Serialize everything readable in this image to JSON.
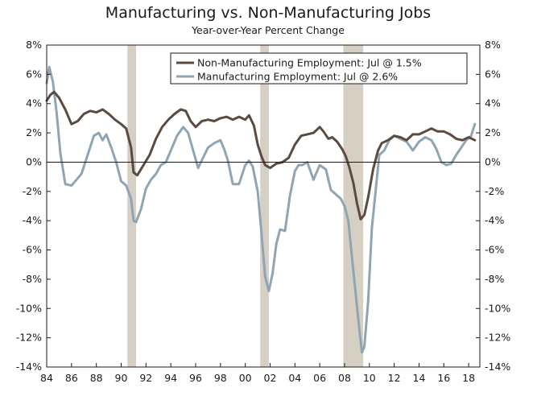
{
  "chart_data": {
    "type": "line",
    "title": "Manufacturing vs. Non-Manufacturing Jobs",
    "subtitle": "Year-over-Year Percent Change",
    "xlabel": "",
    "ylabel": "",
    "xlim": [
      1984,
      2018.9
    ],
    "ylim": [
      -14,
      8
    ],
    "y_ticks": [
      8,
      6,
      4,
      2,
      0,
      -2,
      -4,
      -6,
      -8,
      -10,
      -12,
      -14
    ],
    "y_tick_labels": [
      "8%",
      "6%",
      "4%",
      "2%",
      "0%",
      "-2%",
      "-4%",
      "-6%",
      "-8%",
      "-10%",
      "-12%",
      "-14%"
    ],
    "x_ticks": [
      1984,
      1986,
      1988,
      1990,
      1992,
      1994,
      1996,
      1998,
      2000,
      2002,
      2004,
      2006,
      2008,
      2010,
      2012,
      2014,
      2016,
      2018
    ],
    "x_tick_labels": [
      "84",
      "86",
      "88",
      "90",
      "92",
      "94",
      "96",
      "98",
      "00",
      "02",
      "04",
      "06",
      "08",
      "10",
      "12",
      "14",
      "16",
      "18"
    ],
    "recessions": [
      [
        1990.5,
        1991.2
      ],
      [
        2001.2,
        2001.9
      ],
      [
        2007.9,
        2009.5
      ]
    ],
    "colors": {
      "non_manufacturing": "#5b4a3f",
      "manufacturing": "#8fa5b4",
      "recession": "#d6d0c4",
      "axis": "#1a1a1a"
    },
    "legend": {
      "placement": "top-center"
    },
    "series": [
      {
        "name": "Non-Manufacturing Employment: Jul @ 1.5%",
        "color": "#5b4a3f",
        "x": [
          1984.0,
          1984.3,
          1984.6,
          1985.0,
          1985.5,
          1986.0,
          1986.5,
          1987.0,
          1987.5,
          1988.0,
          1988.5,
          1989.0,
          1989.5,
          1990.0,
          1990.4,
          1990.8,
          1991.0,
          1991.3,
          1991.8,
          1992.3,
          1992.8,
          1993.3,
          1993.8,
          1994.3,
          1994.8,
          1995.2,
          1995.6,
          1996.0,
          1996.5,
          1997.0,
          1997.5,
          1998.0,
          1998.5,
          1999.0,
          1999.5,
          2000.0,
          2000.3,
          2000.7,
          2001.0,
          2001.3,
          2001.6,
          2002.0,
          2002.5,
          2003.0,
          2003.5,
          2004.0,
          2004.5,
          2005.0,
          2005.5,
          2006.0,
          2006.3,
          2006.7,
          2007.0,
          2007.4,
          2007.8,
          2008.1,
          2008.4,
          2008.7,
          2009.0,
          2009.3,
          2009.6,
          2009.9,
          2010.3,
          2010.7,
          2011.0,
          2011.5,
          2012.0,
          2012.5,
          2013.0,
          2013.5,
          2014.0,
          2014.5,
          2015.0,
          2015.5,
          2016.0,
          2016.5,
          2017.0,
          2017.5,
          2018.0,
          2018.5
        ],
        "values": [
          4.2,
          4.6,
          4.8,
          4.4,
          3.6,
          2.6,
          2.8,
          3.3,
          3.5,
          3.4,
          3.6,
          3.3,
          2.9,
          2.6,
          2.3,
          1.0,
          -0.7,
          -0.9,
          -0.2,
          0.5,
          1.6,
          2.4,
          2.9,
          3.3,
          3.6,
          3.5,
          2.8,
          2.4,
          2.8,
          2.9,
          2.8,
          3.0,
          3.1,
          2.9,
          3.1,
          2.9,
          3.2,
          2.5,
          1.2,
          0.4,
          -0.2,
          -0.4,
          -0.1,
          0.0,
          0.3,
          1.2,
          1.8,
          1.9,
          2.0,
          2.4,
          2.1,
          1.6,
          1.7,
          1.4,
          0.9,
          0.4,
          -0.4,
          -1.4,
          -2.8,
          -3.9,
          -3.6,
          -2.4,
          -0.5,
          0.8,
          1.3,
          1.5,
          1.8,
          1.7,
          1.5,
          1.9,
          1.9,
          2.1,
          2.3,
          2.1,
          2.1,
          1.9,
          1.6,
          1.5,
          1.7,
          1.5
        ]
      },
      {
        "name": "Manufacturing Employment: Jul @ 2.6%",
        "color": "#8fa5b4",
        "x": [
          1984.0,
          1984.2,
          1984.5,
          1984.8,
          1985.1,
          1985.5,
          1986.0,
          1986.4,
          1986.8,
          1987.3,
          1987.8,
          1988.2,
          1988.5,
          1988.8,
          1989.2,
          1989.6,
          1990.0,
          1990.4,
          1990.8,
          1991.0,
          1991.2,
          1991.6,
          1992.0,
          1992.4,
          1992.8,
          1993.2,
          1993.6,
          1994.0,
          1994.5,
          1995.0,
          1995.4,
          1995.8,
          1996.2,
          1996.6,
          1997.0,
          1997.5,
          1998.0,
          1998.3,
          1998.6,
          1999.0,
          1999.5,
          2000.0,
          2000.3,
          2000.6,
          2001.0,
          2001.3,
          2001.6,
          2001.9,
          2002.2,
          2002.5,
          2002.8,
          2003.2,
          2003.6,
          2004.0,
          2004.3,
          2004.6,
          2005.0,
          2005.5,
          2006.0,
          2006.5,
          2006.9,
          2007.3,
          2007.7,
          2008.0,
          2008.3,
          2008.6,
          2008.9,
          2009.2,
          2009.4,
          2009.6,
          2009.9,
          2010.2,
          2010.5,
          2010.8,
          2011.2,
          2011.6,
          2012.0,
          2012.5,
          2013.0,
          2013.5,
          2014.0,
          2014.5,
          2015.0,
          2015.4,
          2015.8,
          2016.2,
          2016.6,
          2017.0,
          2017.4,
          2017.8,
          2018.2,
          2018.5
        ],
        "values": [
          5.4,
          6.5,
          5.5,
          3.4,
          0.6,
          -1.5,
          -1.6,
          -1.2,
          -0.8,
          0.5,
          1.8,
          2.0,
          1.5,
          1.9,
          1.0,
          0.0,
          -1.3,
          -1.6,
          -2.5,
          -4.0,
          -4.1,
          -3.2,
          -1.8,
          -1.2,
          -0.8,
          -0.2,
          0.0,
          0.8,
          1.8,
          2.4,
          2.0,
          0.8,
          -0.4,
          0.3,
          1.0,
          1.3,
          1.5,
          0.9,
          0.1,
          -1.5,
          -1.5,
          -0.2,
          0.1,
          -0.3,
          -2.0,
          -4.8,
          -7.8,
          -8.8,
          -7.6,
          -5.6,
          -4.6,
          -4.7,
          -2.3,
          -0.6,
          -0.2,
          -0.2,
          0.0,
          -1.2,
          -0.2,
          -0.5,
          -1.9,
          -2.2,
          -2.5,
          -3.0,
          -4.0,
          -6.5,
          -9.0,
          -11.5,
          -13.0,
          -12.6,
          -9.5,
          -4.5,
          -2.0,
          0.5,
          0.8,
          1.5,
          1.8,
          1.6,
          1.4,
          0.8,
          1.4,
          1.7,
          1.5,
          0.9,
          0.0,
          -0.2,
          -0.1,
          0.5,
          1.0,
          1.5,
          1.8,
          2.6
        ]
      }
    ]
  }
}
